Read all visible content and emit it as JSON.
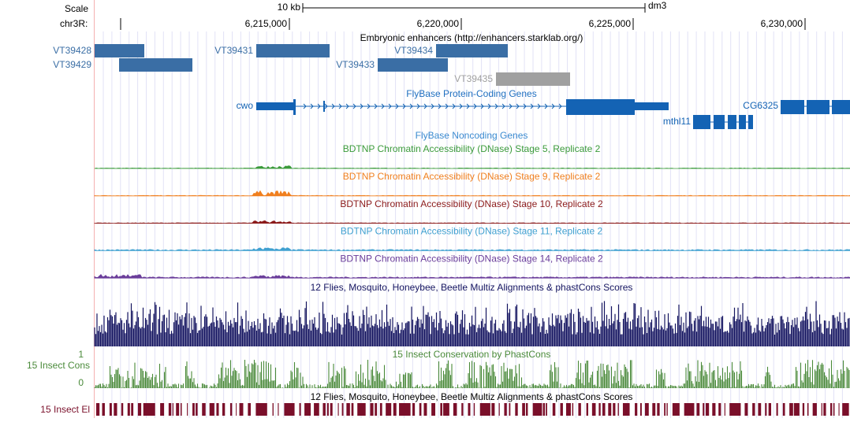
{
  "ruler": {
    "scale_label": "Scale",
    "span_label": "10 kb",
    "assembly": "dm3",
    "chrom_label": "chr3R:",
    "ticks": [
      {
        "value": 6215000,
        "label": "6,215,000"
      },
      {
        "value": 6220000,
        "label": "6,220,000"
      },
      {
        "value": 6225000,
        "label": "6,225,000"
      },
      {
        "value": 6230000,
        "label": "6,230,000"
      }
    ]
  },
  "enhancers": {
    "title": "Embryonic enhancers (http://enhancers.starklab.org/)",
    "items": [
      "VT39428",
      "VT39429",
      "VT39431",
      "VT39433",
      "VT39434",
      "VT39435"
    ]
  },
  "protein_genes": {
    "title": "FlyBase Protein-Coding Genes",
    "genes": [
      "cwo",
      "CG6325",
      "mthl11"
    ]
  },
  "noncoding_genes": {
    "title": "FlyBase Noncoding Genes"
  },
  "dnase_tracks": [
    "BDTNP Chromatin Accessibility (DNase) Stage 5, Replicate 2",
    "BDTNP Chromatin Accessibility (DNase) Stage 9, Replicate 2",
    "BDTNP Chromatin Accessibility (DNase) Stage 10, Replicate 2",
    "BDTNP Chromatin Accessibility (DNase) Stage 11, Replicate 2",
    "BDTNP Chromatin Accessibility (DNase) Stage 14, Replicate 2"
  ],
  "multiz": {
    "title": "12 Flies, Mosquito, Honeybee, Beetle Multiz Alignments & phastCons Scores"
  },
  "phastcons": {
    "title": "15 Insect Conservation by PhastCons",
    "label": "15 Insect Cons",
    "axis_max": 1,
    "axis_min": 0
  },
  "elements": {
    "title": "12 Flies, Mosquito, Honeybee, Beetle Multiz Alignments & phastCons Scores",
    "label": "15 Insect El"
  }
}
